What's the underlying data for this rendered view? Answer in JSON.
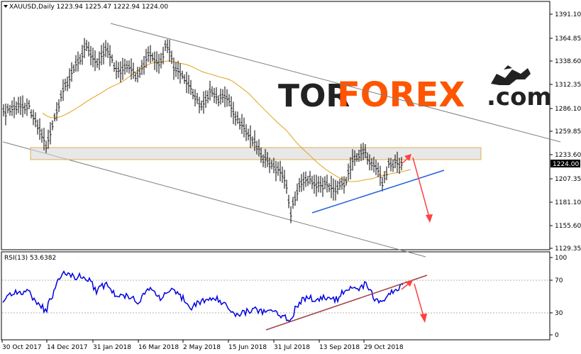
{
  "main_panel": {
    "header": "XAUUSD,Daily  1223.94 1225.47 1222.94 1224.00",
    "current_price_label": "1224.00",
    "price_ticks": [
      "1391.10",
      "1364.85",
      "1338.60",
      "1312.35",
      "1286.10",
      "1259.85",
      "1233.60",
      "1207.35",
      "1181.10",
      "1155.60",
      "1129.35"
    ]
  },
  "rsi_panel": {
    "header": "RSI(13) 53.6382",
    "levels": [
      "100",
      "70",
      "30",
      "0"
    ]
  },
  "time_axis": [
    "30 Oct 2017",
    "14 Dec 2017",
    "31 Jan 2018",
    "16 Mar 2018",
    "2 May 2018",
    "15 Jun 2018",
    "31 Jul 2018",
    "13 Sep 2018",
    "29 Oct 2018"
  ],
  "logo": {
    "part1": "TOR",
    "part2": "FOREX",
    "part3": ".com",
    "icon": "bull-bear-icon"
  },
  "colors": {
    "ma_fast": "#e0a020",
    "ma_slow": "#20a090",
    "support_line": "#2060e0",
    "rsi_line": "#0000dd",
    "rsi_trend": "#a04040",
    "arrow": "#ff4040",
    "zone_fill": "#d9d9d9",
    "zone_border": "#e0b050",
    "channel": "#808080"
  }
}
